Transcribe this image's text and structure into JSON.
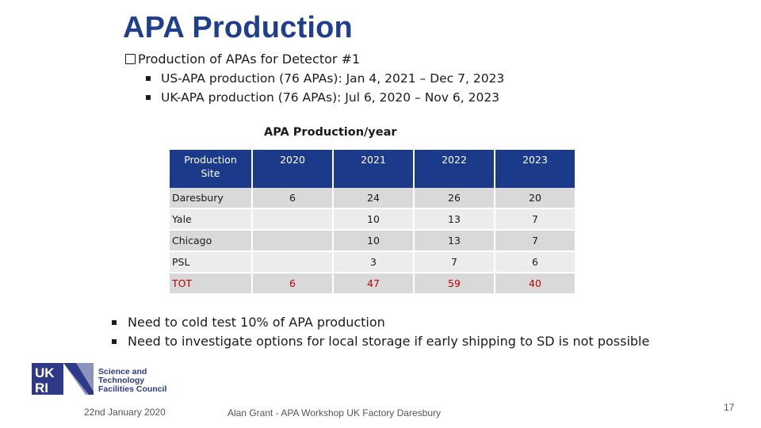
{
  "slide": {
    "title": "APA Production",
    "q_text": "Production of APAs for Detector #1",
    "sub_bullets": [
      "US-APA production (76 APAs): Jan 4, 2021 – Dec 7, 2023",
      "UK-APA production (76 APAs): Jul 6, 2020 – Nov 6, 2023"
    ],
    "bullets": [
      "Need to cold test 10% of APA production",
      "Need to investigate options for local storage if early shipping to SD is not possible"
    ]
  },
  "table": {
    "title": "APA Production/year",
    "header_site_line1": "Production",
    "header_site_line2": "Site",
    "headers": [
      "2020",
      "2021",
      "2022",
      "2023"
    ],
    "rows": [
      {
        "site": "Daresbury",
        "values": [
          "6",
          "24",
          "26",
          "20"
        ]
      },
      {
        "site": "Yale",
        "values": [
          "",
          "10",
          "13",
          "7"
        ]
      },
      {
        "site": "Chicago",
        "values": [
          "",
          "10",
          "13",
          "7"
        ]
      },
      {
        "site": "PSL",
        "values": [
          "",
          "3",
          "7",
          "6"
        ]
      },
      {
        "site": "TOT",
        "values": [
          "6",
          "47",
          "59",
          "40"
        ]
      }
    ]
  },
  "logo": {
    "mark_text_top": "UK",
    "mark_text_bottom": "RI",
    "line1": "Science and",
    "line2": "Technology",
    "line3": "Facilities Council",
    "color": "#2e3a87"
  },
  "footer": {
    "date": "22nd January 2020",
    "author": "Alan Grant - APA Workshop UK Factory Daresbury",
    "page": "17"
  }
}
